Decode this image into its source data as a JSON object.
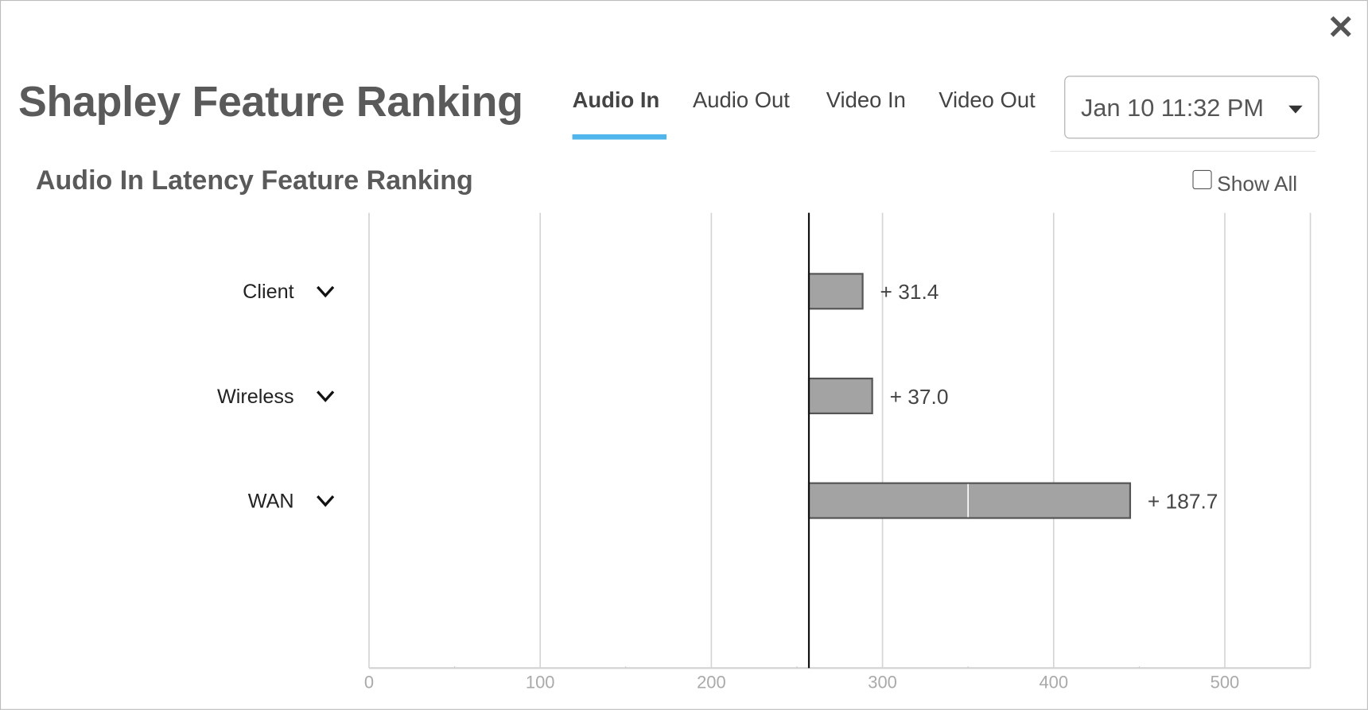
{
  "close_icon": "close-icon",
  "title": "Shapley Feature Ranking",
  "tabs": [
    {
      "label": "Audio In",
      "active": true
    },
    {
      "label": "Audio Out",
      "active": false
    },
    {
      "label": "Video In",
      "active": false
    },
    {
      "label": "Video Out",
      "active": false
    }
  ],
  "date_select": {
    "value": "Jan 10 11:32 PM"
  },
  "subtitle": "Audio In Latency Feature Ranking",
  "show_all": {
    "label": "Show All",
    "checked": false
  },
  "colors": {
    "accent": "#4fb5ea",
    "bar": "#a3a3a3",
    "bar_stroke": "#555555",
    "grid": "#d4d4d4"
  },
  "chart_data": {
    "type": "bar",
    "orientation": "horizontal",
    "base_value": 257,
    "categories": [
      "Client",
      "Wireless",
      "WAN"
    ],
    "values": [
      31.4,
      37.0,
      187.7
    ],
    "value_labels": [
      "+ 31.4",
      "+ 37.0",
      "+ 187.7"
    ],
    "xlim": [
      0,
      550
    ],
    "xticks": [
      0,
      100,
      200,
      300,
      400,
      500
    ],
    "xtick_labels": [
      "0",
      "100",
      "200",
      "300",
      "400",
      "500"
    ],
    "grid": true
  }
}
